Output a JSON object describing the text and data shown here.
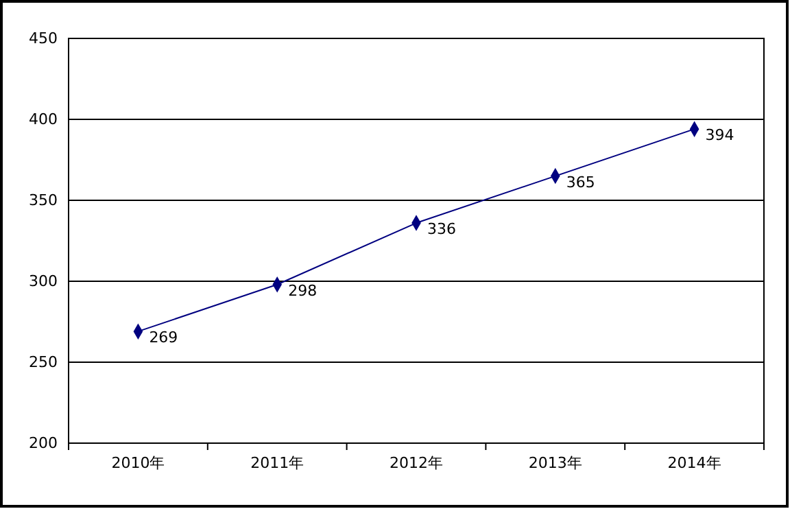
{
  "chart_data": {
    "type": "line",
    "categories": [
      "2010年",
      "2011年",
      "2012年",
      "2013年",
      "2014年"
    ],
    "series": [
      {
        "color": "#000080",
        "values": [
          269,
          298,
          336,
          365,
          394
        ]
      }
    ],
    "ylim": [
      200,
      450
    ],
    "yticks": [
      200,
      250,
      300,
      350,
      400,
      450
    ],
    "grid": "y",
    "marker": "diamond",
    "line_style": "solid",
    "data_labels": true
  }
}
